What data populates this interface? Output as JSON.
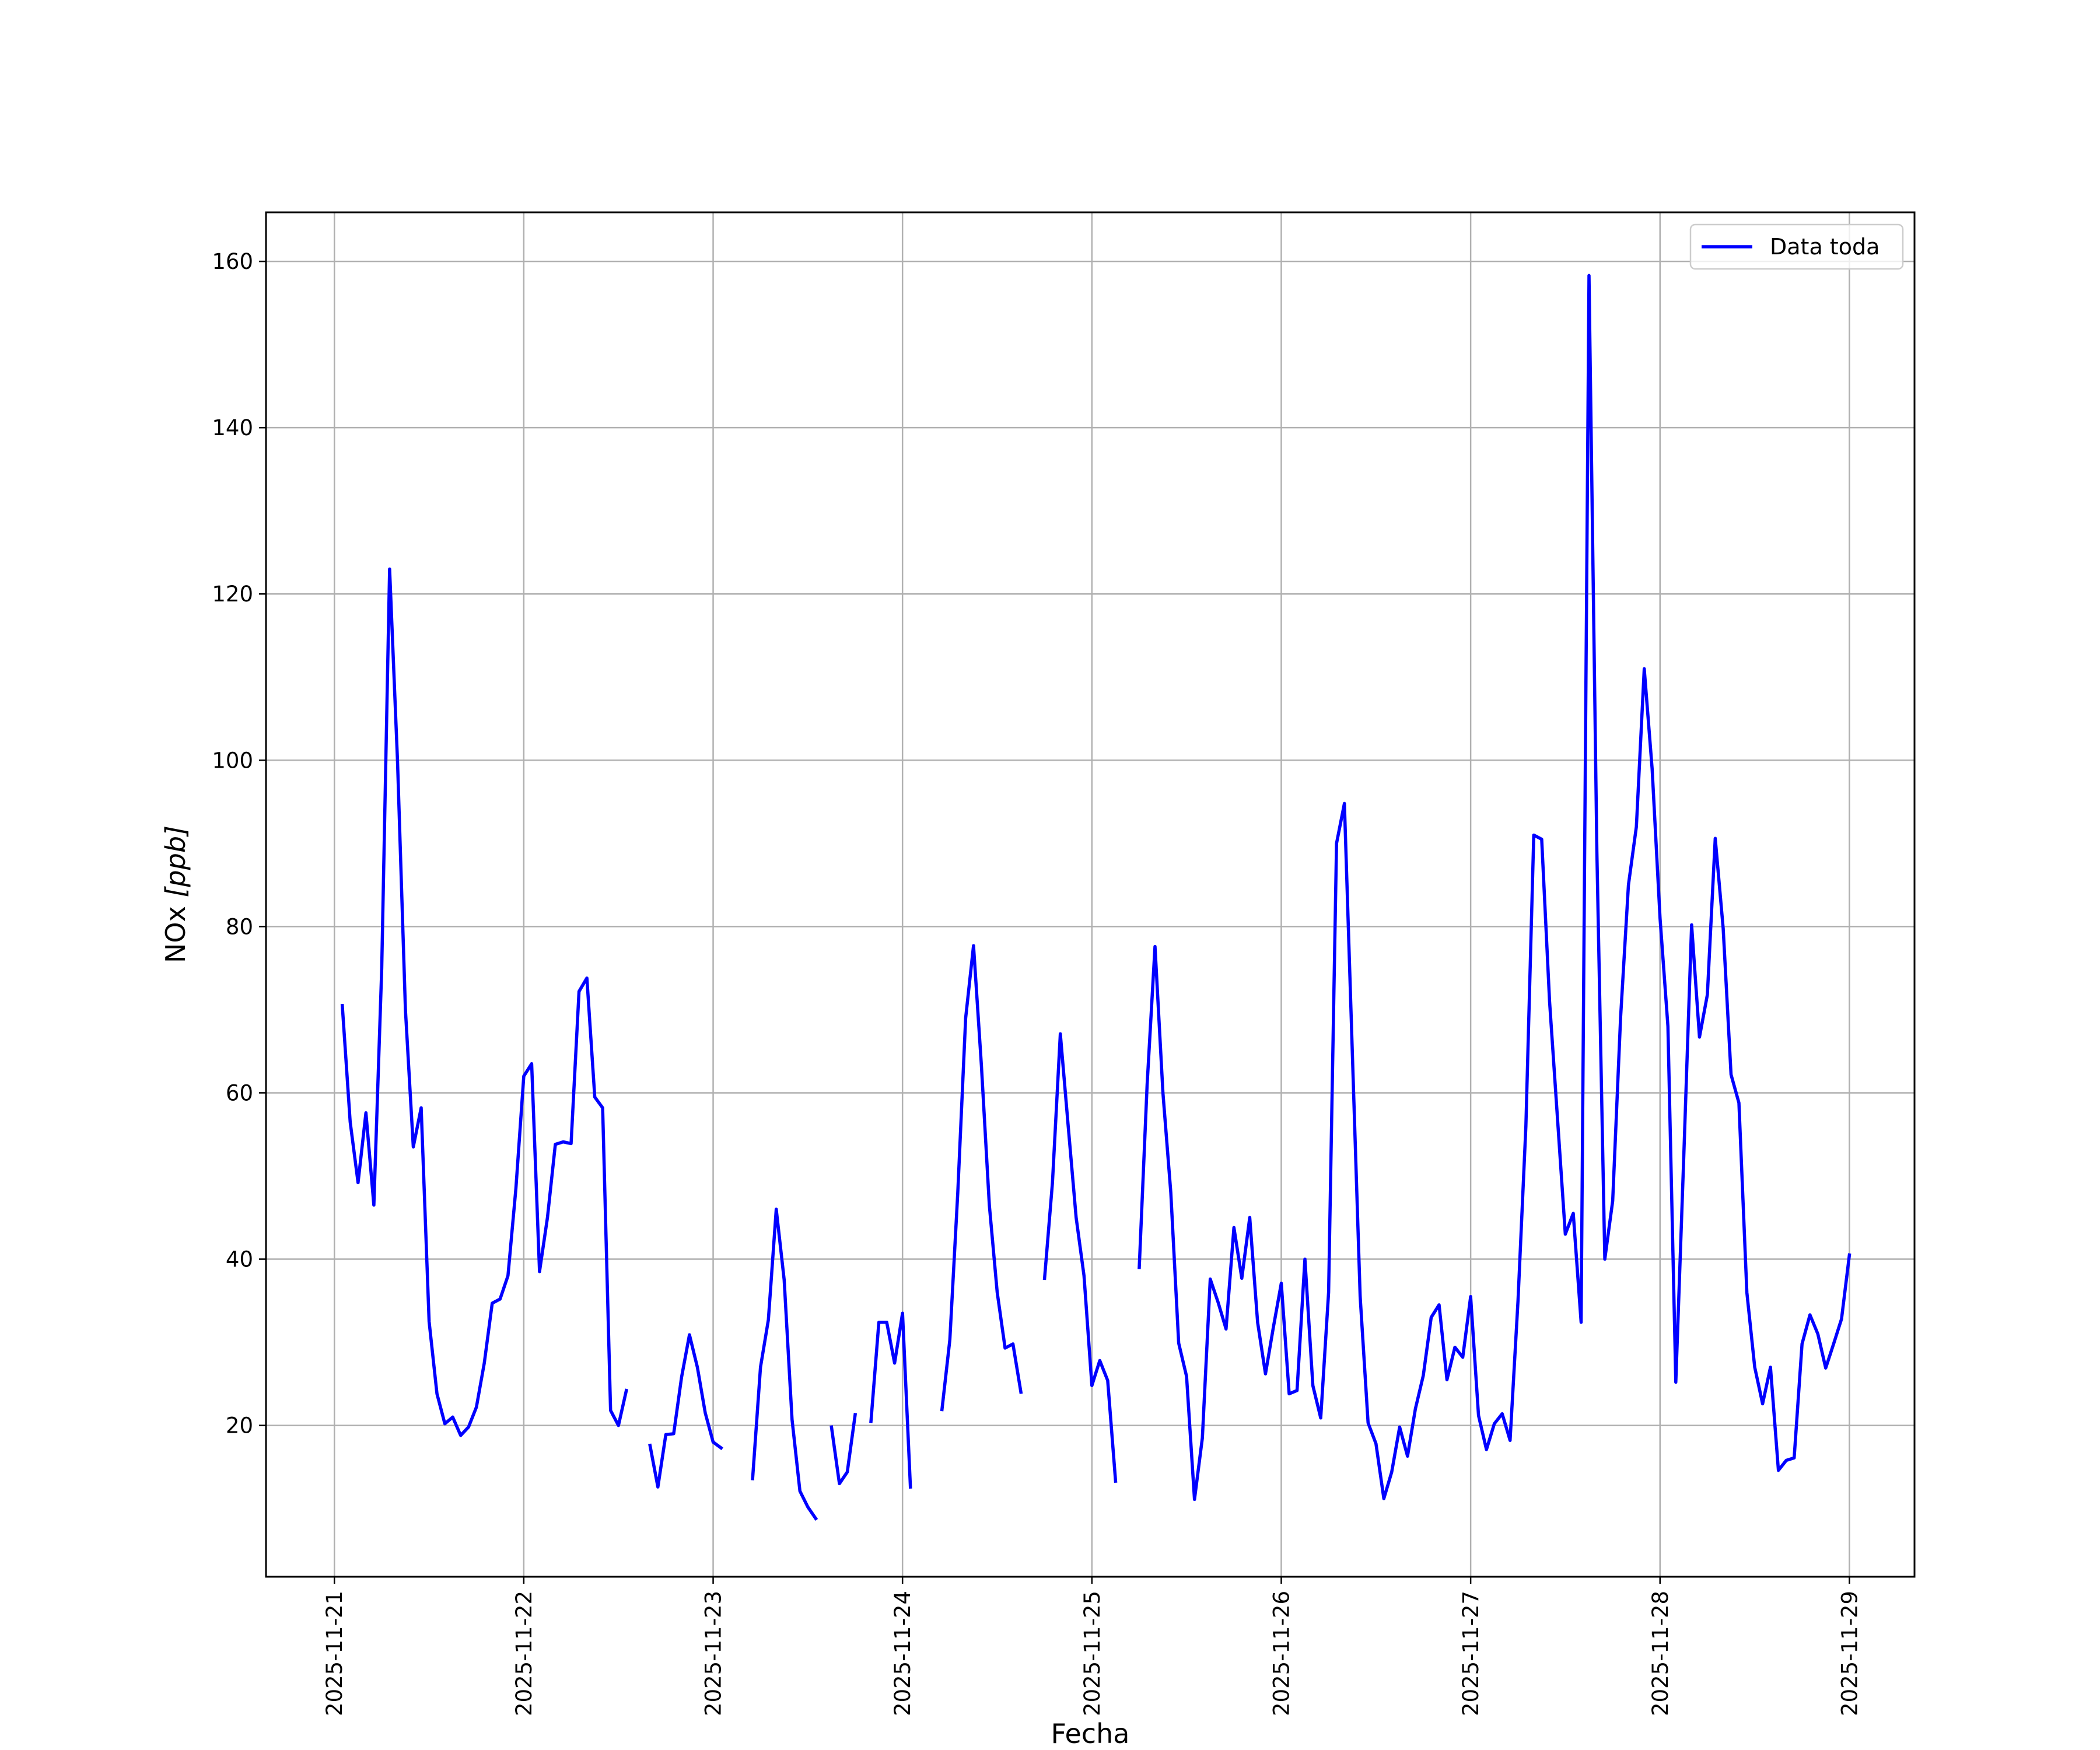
{
  "chart_data": {
    "type": "line",
    "xlabel": "Fecha",
    "ylabel_main": "NOx ",
    "ylabel_unit": "[ppb]",
    "x_start": "2025-11-21T00:00",
    "x_end": "2025-11-29T00:00",
    "xlim": [
      "2025-11-20T15:20",
      "2025-11-29T08:15"
    ],
    "ylim": [
      1.8,
      165.9
    ],
    "x_ticks": [
      "2025-11-21",
      "2025-11-22",
      "2025-11-23",
      "2025-11-24",
      "2025-11-25",
      "2025-11-26",
      "2025-11-27",
      "2025-11-28",
      "2025-11-29"
    ],
    "y_ticks": [
      "20",
      "40",
      "60",
      "80",
      "100",
      "120",
      "140",
      "160"
    ],
    "y_tick_values": [
      20,
      40,
      60,
      80,
      100,
      120,
      140,
      160
    ],
    "grid": true,
    "legend": {
      "placement": "top-right",
      "entries": [
        "Data toda"
      ]
    },
    "series": [
      {
        "name": "Data toda",
        "color": "#0000ff",
        "segments": [
          [
            [
              "2025-11-21T01:00",
              70.5
            ],
            [
              "2025-11-21T02:00",
              56.5
            ],
            [
              "2025-11-21T03:00",
              49.2
            ],
            [
              "2025-11-21T04:00",
              57.6
            ],
            [
              "2025-11-21T05:00",
              46.5
            ],
            [
              "2025-11-21T06:00",
              75.0
            ],
            [
              "2025-11-21T07:00",
              123.0
            ],
            [
              "2025-11-21T08:00",
              100.0
            ],
            [
              "2025-11-21T09:00",
              70.0
            ],
            [
              "2025-11-21T10:00",
              53.5
            ],
            [
              "2025-11-21T11:00",
              58.2
            ],
            [
              "2025-11-21T12:00",
              32.5
            ],
            [
              "2025-11-21T13:00",
              23.8
            ],
            [
              "2025-11-21T14:00",
              20.2
            ],
            [
              "2025-11-21T15:00",
              21.0
            ],
            [
              "2025-11-21T16:00",
              18.8
            ],
            [
              "2025-11-21T17:00",
              19.8
            ],
            [
              "2025-11-21T18:00",
              22.2
            ],
            [
              "2025-11-21T19:00",
              27.5
            ],
            [
              "2025-11-21T20:00",
              34.7
            ],
            [
              "2025-11-21T21:00",
              35.2
            ],
            [
              "2025-11-21T22:00",
              38.0
            ],
            [
              "2025-11-21T23:00",
              48.5
            ],
            [
              "2025-11-22T00:00",
              62.0
            ],
            [
              "2025-11-22T01:00",
              63.5
            ],
            [
              "2025-11-22T02:00",
              38.5
            ],
            [
              "2025-11-22T03:00",
              45.0
            ],
            [
              "2025-11-22T04:00",
              53.8
            ],
            [
              "2025-11-22T05:00",
              54.1
            ],
            [
              "2025-11-22T06:00",
              53.9
            ],
            [
              "2025-11-22T07:00",
              72.2
            ],
            [
              "2025-11-22T08:00",
              73.8
            ],
            [
              "2025-11-22T09:00",
              59.5
            ],
            [
              "2025-11-22T10:00",
              58.2
            ],
            [
              "2025-11-22T11:00",
              21.8
            ],
            [
              "2025-11-22T12:00",
              20.0
            ],
            [
              "2025-11-22T13:00",
              24.2
            ]
          ],
          [
            [
              "2025-11-22T16:00",
              17.6
            ],
            [
              "2025-11-22T17:00",
              12.6
            ],
            [
              "2025-11-22T18:00",
              18.9
            ],
            [
              "2025-11-22T19:00",
              19.0
            ],
            [
              "2025-11-22T20:00",
              25.8
            ],
            [
              "2025-11-22T21:00",
              30.9
            ],
            [
              "2025-11-22T22:00",
              27.0
            ],
            [
              "2025-11-22T23:00",
              21.5
            ],
            [
              "2025-11-23T00:00",
              18.0
            ],
            [
              "2025-11-23T01:00",
              17.3
            ]
          ],
          [
            [
              "2025-11-23T05:00",
              13.6
            ],
            [
              "2025-11-23T06:00",
              27.0
            ],
            [
              "2025-11-23T07:00",
              32.7
            ],
            [
              "2025-11-23T08:00",
              46.0
            ],
            [
              "2025-11-23T09:00",
              37.5
            ],
            [
              "2025-11-23T10:00",
              20.7
            ],
            [
              "2025-11-23T11:00",
              12.1
            ],
            [
              "2025-11-23T12:00",
              10.2
            ],
            [
              "2025-11-23T13:00",
              8.8
            ]
          ],
          [
            [
              "2025-11-23T15:00",
              19.8
            ],
            [
              "2025-11-23T16:00",
              13.0
            ],
            [
              "2025-11-23T17:00",
              14.4
            ],
            [
              "2025-11-23T18:00",
              21.3
            ]
          ],
          [
            [
              "2025-11-23T20:00",
              20.5
            ],
            [
              "2025-11-23T21:00",
              32.4
            ],
            [
              "2025-11-23T22:00",
              32.4
            ],
            [
              "2025-11-23T23:00",
              27.5
            ],
            [
              "2025-11-24T00:00",
              33.5
            ],
            [
              "2025-11-24T01:00",
              12.6
            ]
          ],
          [
            [
              "2025-11-24T05:00",
              21.9
            ],
            [
              "2025-11-24T06:00",
              30.3
            ],
            [
              "2025-11-24T07:00",
              48.0
            ],
            [
              "2025-11-24T08:00",
              69.0
            ],
            [
              "2025-11-24T09:00",
              77.7
            ],
            [
              "2025-11-24T10:00",
              63.3
            ],
            [
              "2025-11-24T11:00",
              46.5
            ],
            [
              "2025-11-24T12:00",
              36.0
            ],
            [
              "2025-11-24T13:00",
              29.3
            ],
            [
              "2025-11-24T14:00",
              29.8
            ],
            [
              "2025-11-24T15:00",
              24.0
            ]
          ],
          [
            [
              "2025-11-24T18:00",
              37.7
            ],
            [
              "2025-11-24T19:00",
              49.2
            ],
            [
              "2025-11-24T20:00",
              67.1
            ],
            [
              "2025-11-24T21:00",
              56.0
            ],
            [
              "2025-11-24T22:00",
              45.0
            ],
            [
              "2025-11-24T23:00",
              38.0
            ],
            [
              "2025-11-25T00:00",
              24.8
            ],
            [
              "2025-11-25T01:00",
              27.8
            ],
            [
              "2025-11-25T02:00",
              25.4
            ],
            [
              "2025-11-25T03:00",
              13.3
            ]
          ],
          [
            [
              "2025-11-25T06:00",
              39.0
            ],
            [
              "2025-11-25T07:00",
              61.0
            ],
            [
              "2025-11-25T08:00",
              77.6
            ],
            [
              "2025-11-25T09:00",
              60.0
            ],
            [
              "2025-11-25T10:00",
              48.0
            ],
            [
              "2025-11-25T11:00",
              29.9
            ],
            [
              "2025-11-25T12:00",
              25.9
            ],
            [
              "2025-11-25T13:00",
              11.1
            ],
            [
              "2025-11-25T14:00",
              18.5
            ],
            [
              "2025-11-25T15:00",
              37.6
            ],
            [
              "2025-11-25T16:00",
              34.8
            ],
            [
              "2025-11-25T17:00",
              31.6
            ],
            [
              "2025-11-25T18:00",
              43.8
            ],
            [
              "2025-11-25T19:00",
              37.7
            ],
            [
              "2025-11-25T20:00",
              45.0
            ],
            [
              "2025-11-25T21:00",
              32.4
            ],
            [
              "2025-11-25T22:00",
              26.2
            ],
            [
              "2025-11-25T23:00",
              31.8
            ],
            [
              "2025-11-26T00:00",
              37.1
            ],
            [
              "2025-11-26T01:00",
              23.8
            ],
            [
              "2025-11-26T02:00",
              24.2
            ],
            [
              "2025-11-26T03:00",
              40.0
            ],
            [
              "2025-11-26T04:00",
              24.8
            ],
            [
              "2025-11-26T05:00",
              20.9
            ],
            [
              "2025-11-26T06:00",
              36.0
            ],
            [
              "2025-11-26T07:00",
              90.0
            ],
            [
              "2025-11-26T08:00",
              94.8
            ],
            [
              "2025-11-26T09:00",
              65.0
            ],
            [
              "2025-11-26T10:00",
              35.5
            ],
            [
              "2025-11-26T11:00",
              20.3
            ],
            [
              "2025-11-26T12:00",
              17.8
            ],
            [
              "2025-11-26T13:00",
              11.2
            ],
            [
              "2025-11-26T14:00",
              14.4
            ],
            [
              "2025-11-26T15:00",
              19.8
            ],
            [
              "2025-11-26T16:00",
              16.3
            ],
            [
              "2025-11-26T17:00",
              22.0
            ],
            [
              "2025-11-26T18:00",
              26.0
            ],
            [
              "2025-11-26T19:00",
              33.0
            ],
            [
              "2025-11-26T20:00",
              34.5
            ],
            [
              "2025-11-26T21:00",
              25.5
            ],
            [
              "2025-11-26T22:00",
              29.4
            ],
            [
              "2025-11-26T23:00",
              28.2
            ],
            [
              "2025-11-27T00:00",
              35.5
            ],
            [
              "2025-11-27T01:00",
              21.2
            ],
            [
              "2025-11-27T02:00",
              17.1
            ],
            [
              "2025-11-27T03:00",
              20.2
            ],
            [
              "2025-11-27T04:00",
              21.4
            ],
            [
              "2025-11-27T05:00",
              18.2
            ],
            [
              "2025-11-27T06:00",
              35.0
            ],
            [
              "2025-11-27T07:00",
              56.0
            ],
            [
              "2025-11-27T08:00",
              91.0
            ],
            [
              "2025-11-27T09:00",
              90.5
            ],
            [
              "2025-11-27T10:00",
              71.0
            ],
            [
              "2025-11-27T11:00",
              57.0
            ],
            [
              "2025-11-27T12:00",
              43.0
            ],
            [
              "2025-11-27T13:00",
              45.5
            ],
            [
              "2025-11-27T14:00",
              32.4
            ],
            [
              "2025-11-27T15:00",
              158.3
            ],
            [
              "2025-11-27T16:00",
              89.0
            ],
            [
              "2025-11-27T17:00",
              40.0
            ],
            [
              "2025-11-27T18:00",
              47.0
            ],
            [
              "2025-11-27T19:00",
              69.0
            ],
            [
              "2025-11-27T20:00",
              85.0
            ],
            [
              "2025-11-27T21:00",
              92.0
            ],
            [
              "2025-11-27T22:00",
              111.0
            ],
            [
              "2025-11-27T23:00",
              99.0
            ],
            [
              "2025-11-28T00:00",
              81.0
            ],
            [
              "2025-11-28T01:00",
              68.0
            ],
            [
              "2025-11-28T02:00",
              25.2
            ],
            [
              "2025-11-28T03:00",
              52.0
            ],
            [
              "2025-11-28T04:00",
              80.2
            ],
            [
              "2025-11-28T05:00",
              66.7
            ],
            [
              "2025-11-28T06:00",
              71.8
            ],
            [
              "2025-11-28T07:00",
              90.6
            ],
            [
              "2025-11-28T08:00",
              79.8
            ],
            [
              "2025-11-28T09:00",
              62.2
            ],
            [
              "2025-11-28T10:00",
              58.8
            ],
            [
              "2025-11-28T11:00",
              36.0
            ],
            [
              "2025-11-28T12:00",
              27.0
            ],
            [
              "2025-11-28T13:00",
              22.6
            ],
            [
              "2025-11-28T14:00",
              27.0
            ],
            [
              "2025-11-28T15:00",
              14.6
            ],
            [
              "2025-11-28T16:00",
              15.8
            ],
            [
              "2025-11-28T17:00",
              16.1
            ],
            [
              "2025-11-28T18:00",
              29.8
            ],
            [
              "2025-11-28T19:00",
              33.3
            ],
            [
              "2025-11-28T20:00",
              31.0
            ],
            [
              "2025-11-28T21:00",
              26.9
            ],
            [
              "2025-11-28T22:00",
              29.8
            ],
            [
              "2025-11-28T23:00",
              32.8
            ],
            [
              "2025-11-29T00:00",
              40.5
            ]
          ]
        ]
      }
    ]
  }
}
